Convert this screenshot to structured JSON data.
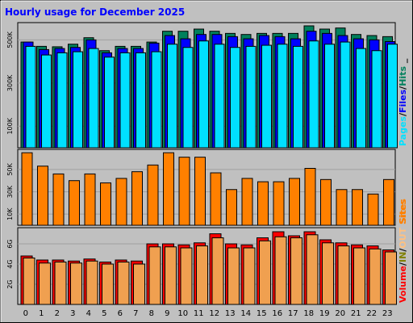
{
  "colors": {
    "background": "#c0c0c0",
    "grid": "#a0a0a0",
    "title": "#0000ff",
    "hits": "#00805c",
    "files": "#0000ff",
    "pages": "#00e0ff",
    "sites": "#ff8000",
    "volume": "#ff0000",
    "in": "#808000",
    "out": "#ffc080",
    "volume_out_fill": "#f0a050"
  },
  "chart_data": {
    "type": "bar",
    "title": "Hourly usage for December 2025",
    "categories": [
      "0",
      "1",
      "2",
      "3",
      "4",
      "5",
      "6",
      "7",
      "8",
      "9",
      "10",
      "11",
      "12",
      "13",
      "14",
      "15",
      "16",
      "17",
      "18",
      "19",
      "20",
      "21",
      "22",
      "23"
    ],
    "panels": [
      {
        "id": "requests",
        "yticks": [
          "500K",
          "300K",
          "100K"
        ],
        "ytick_values": [
          500000,
          300000,
          100000
        ],
        "ylim": [
          0,
          580000
        ],
        "legend": [
          "Pages",
          "/",
          "Files",
          "/",
          "Hits",
          "_"
        ],
        "series": [
          {
            "name": "Hits",
            "values": [
              490000,
              470000,
              468000,
              480000,
              510000,
              450000,
              470000,
              470000,
              490000,
              540000,
              540000,
              550000,
              540000,
              530000,
              525000,
              530000,
              530000,
              530000,
              565000,
              550000,
              555000,
              525000,
              520000,
              515000
            ]
          },
          {
            "name": "Files",
            "values": [
              490000,
              455000,
              460000,
              465000,
              500000,
              440000,
              460000,
              460000,
              485000,
              520000,
              505000,
              525000,
              525000,
              515000,
              505000,
              520000,
              515000,
              505000,
              540000,
              530000,
              520000,
              505000,
              500000,
              492000
            ]
          },
          {
            "name": "Pages",
            "values": [
              470000,
              430000,
              440000,
              445000,
              460000,
              420000,
              440000,
              440000,
              445000,
              480000,
              465000,
              495000,
              480000,
              465000,
              470000,
              475000,
              480000,
              470000,
              495000,
              480000,
              490000,
              460000,
              450000,
              480000
            ]
          }
        ]
      },
      {
        "id": "sites",
        "yticks": [
          "50K",
          "30K",
          "10K"
        ],
        "ytick_values": [
          50000,
          30000,
          10000
        ],
        "ylim": [
          0,
          68000
        ],
        "legend": [
          "Sites"
        ],
        "series": [
          {
            "name": "Sites",
            "values": [
              65000,
              53000,
              46000,
              40000,
              46000,
              38000,
              42000,
              48000,
              54000,
              65000,
              61000,
              61000,
              47000,
              32000,
              42000,
              39000,
              39000,
              42000,
              51000,
              41000,
              32000,
              32000,
              28000,
              41000
            ]
          }
        ]
      },
      {
        "id": "volume",
        "yticks": [
          "6G",
          "4G",
          "2G"
        ],
        "ytick_values": [
          6,
          4,
          2
        ],
        "ylim": [
          0,
          7.6
        ],
        "legend": [
          "Volume",
          "/",
          "IN",
          "/",
          "OUT",
          "Sites"
        ],
        "series": [
          {
            "name": "Volume",
            "values": [
              4.8,
              4.4,
              4.4,
              4.3,
              4.5,
              4.2,
              4.4,
              4.3,
              6.0,
              6.0,
              5.9,
              6.1,
              7.0,
              6.0,
              5.9,
              6.6,
              7.2,
              6.8,
              7.2,
              6.4,
              6.1,
              5.9,
              5.8,
              5.4
            ]
          },
          {
            "name": "OUT",
            "values": [
              4.6,
              4.1,
              4.2,
              4.1,
              4.3,
              4.0,
              4.2,
              4.0,
              5.7,
              5.7,
              5.6,
              5.8,
              6.6,
              5.6,
              5.6,
              6.3,
              6.7,
              6.6,
              6.9,
              6.1,
              5.8,
              5.6,
              5.5,
              5.2
            ]
          }
        ]
      }
    ]
  }
}
